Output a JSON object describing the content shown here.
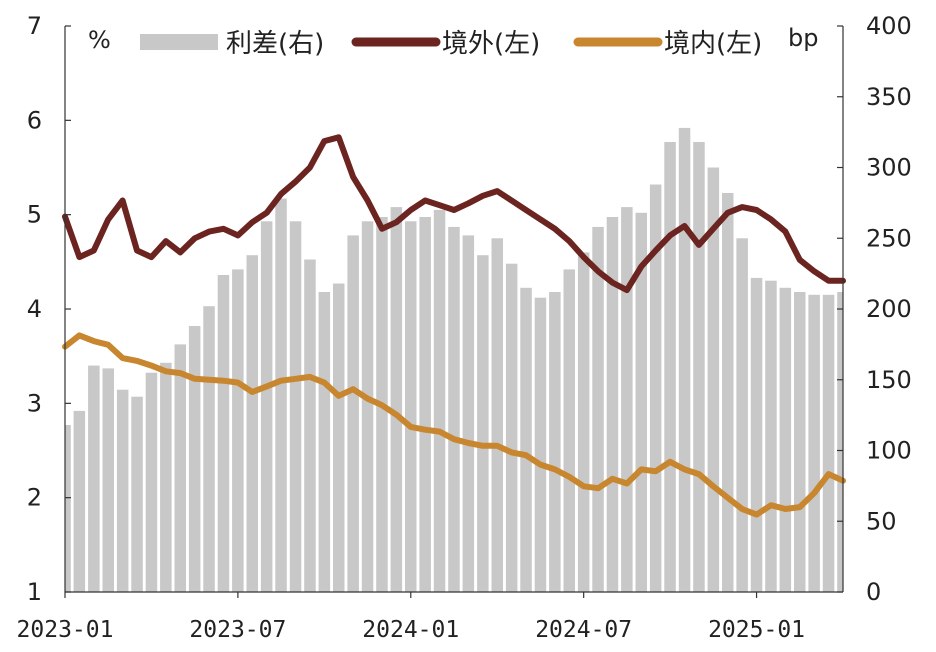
{
  "chart_data": {
    "type": "bar+line",
    "title": "",
    "left_unit": "%",
    "right_unit": "bp",
    "left_axis": {
      "ylim": [
        1,
        7
      ],
      "ticks": [
        "1",
        "2",
        "3",
        "4",
        "5",
        "6",
        "7"
      ]
    },
    "right_axis": {
      "ylim": [
        0,
        400
      ],
      "ticks": [
        "0",
        "50",
        "100",
        "150",
        "200",
        "250",
        "300",
        "350",
        "400"
      ]
    },
    "x_ticks": [
      "2023-01",
      "2023-07",
      "2024-01",
      "2024-07",
      "2025-01"
    ],
    "x_range_months": [
      0,
      27
    ],
    "legend_position": "top",
    "colors": {
      "spread": "#c8c8c8",
      "offshore": "#6b2420",
      "onshore": "#c8862e"
    },
    "series": [
      {
        "name": "利差(右)",
        "kind": "bar",
        "axis": "right",
        "x": [
          0,
          0.5,
          1,
          1.5,
          2,
          2.5,
          3,
          3.5,
          4,
          4.5,
          5,
          5.5,
          6,
          6.5,
          7,
          7.5,
          8,
          8.5,
          9,
          9.5,
          10,
          10.5,
          11,
          11.5,
          12,
          12.5,
          13,
          13.5,
          14,
          14.5,
          15,
          15.5,
          16,
          16.5,
          17,
          17.5,
          18,
          18.5,
          19,
          19.5,
          20,
          20.5,
          21,
          21.5,
          22,
          22.5,
          23,
          23.5,
          24,
          24.5,
          25,
          25.5,
          26,
          26.5,
          27
        ],
        "values": [
          118,
          128,
          160,
          158,
          143,
          138,
          155,
          162,
          175,
          188,
          202,
          224,
          228,
          238,
          262,
          278,
          262,
          235,
          212,
          218,
          252,
          262,
          265,
          272,
          262,
          265,
          270,
          258,
          252,
          238,
          250,
          232,
          215,
          208,
          212,
          228,
          240,
          258,
          265,
          272,
          268,
          288,
          318,
          328,
          318,
          300,
          282,
          250,
          222,
          220,
          215,
          212,
          210,
          210,
          212
        ]
      },
      {
        "name": "境外(左)",
        "kind": "line",
        "axis": "left",
        "x": [
          0,
          0.5,
          1,
          1.5,
          2,
          2.5,
          3,
          3.5,
          4,
          4.5,
          5,
          5.5,
          6,
          6.5,
          7,
          7.5,
          8,
          8.5,
          9,
          9.5,
          10,
          10.5,
          11,
          11.5,
          12,
          12.5,
          13,
          13.5,
          14,
          14.5,
          15,
          15.5,
          16,
          16.5,
          17,
          17.5,
          18,
          18.5,
          19,
          19.5,
          20,
          20.5,
          21,
          21.5,
          22,
          22.5,
          23,
          23.5,
          24,
          24.5,
          25,
          25.5,
          26,
          26.5,
          27
        ],
        "values": [
          4.98,
          4.55,
          4.62,
          4.95,
          5.15,
          4.62,
          4.55,
          4.72,
          4.6,
          4.75,
          4.82,
          4.85,
          4.78,
          4.92,
          5.02,
          5.22,
          5.35,
          5.5,
          5.78,
          5.82,
          5.4,
          5.15,
          4.85,
          4.92,
          5.05,
          5.15,
          5.1,
          5.05,
          5.12,
          5.2,
          5.25,
          5.15,
          5.05,
          4.95,
          4.85,
          4.72,
          4.55,
          4.4,
          4.28,
          4.2,
          4.45,
          4.62,
          4.78,
          4.88,
          4.68,
          4.85,
          5.02,
          5.08,
          5.05,
          4.95,
          4.82,
          4.52,
          4.4,
          4.3,
          4.3
        ]
      },
      {
        "name": "境内(左)",
        "kind": "line",
        "axis": "left",
        "x": [
          0,
          0.5,
          1,
          1.5,
          2,
          2.5,
          3,
          3.5,
          4,
          4.5,
          5,
          5.5,
          6,
          6.5,
          7,
          7.5,
          8,
          8.5,
          9,
          9.5,
          10,
          10.5,
          11,
          11.5,
          12,
          12.5,
          13,
          13.5,
          14,
          14.5,
          15,
          15.5,
          16,
          16.5,
          17,
          17.5,
          18,
          18.5,
          19,
          19.5,
          20,
          20.5,
          21,
          21.5,
          22,
          22.5,
          23,
          23.5,
          24,
          24.5,
          25,
          25.5,
          26,
          26.5,
          27
        ],
        "values": [
          3.6,
          3.72,
          3.66,
          3.62,
          3.48,
          3.45,
          3.4,
          3.34,
          3.32,
          3.26,
          3.25,
          3.24,
          3.22,
          3.12,
          3.18,
          3.24,
          3.26,
          3.28,
          3.22,
          3.08,
          3.15,
          3.05,
          2.98,
          2.88,
          2.75,
          2.72,
          2.7,
          2.62,
          2.58,
          2.55,
          2.55,
          2.48,
          2.45,
          2.35,
          2.3,
          2.22,
          2.12,
          2.1,
          2.2,
          2.15,
          2.3,
          2.28,
          2.38,
          2.3,
          2.25,
          2.12,
          2.0,
          1.88,
          1.82,
          1.92,
          1.88,
          1.9,
          2.05,
          2.25,
          2.18
        ]
      }
    ]
  }
}
